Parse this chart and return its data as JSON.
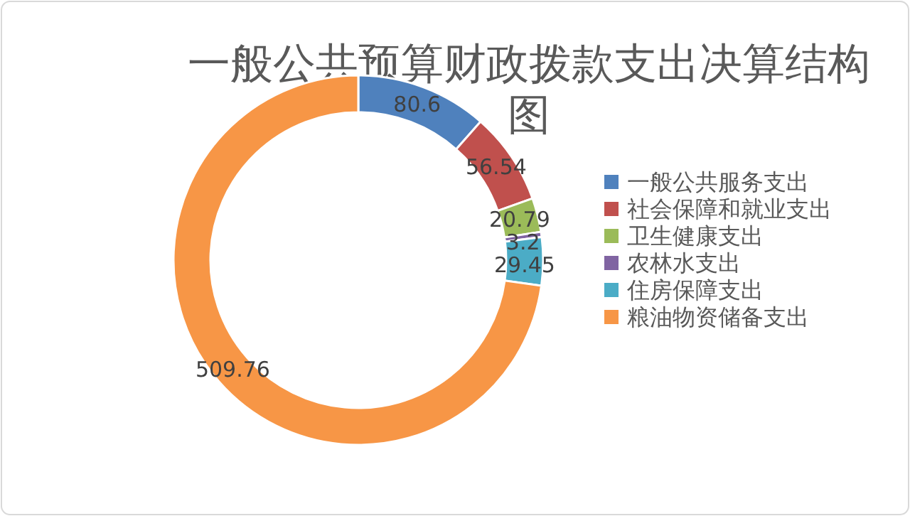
{
  "chart_data": {
    "type": "donut",
    "title": "一般公共预算财政拨款支出决算结构图",
    "categories": [
      "一般公共服务支出",
      "社会保障和就业支出",
      "卫生健康支出",
      "农林水支出",
      "住房保障支出",
      "粮油物资储备支出"
    ],
    "values": [
      80.6,
      56.54,
      20.79,
      3.2,
      29.45,
      509.76
    ],
    "colors": [
      "#4f81bd",
      "#c0504d",
      "#9bbb59",
      "#8064a2",
      "#4bacc6",
      "#f79646"
    ],
    "data_labels": true,
    "legend": "right"
  }
}
